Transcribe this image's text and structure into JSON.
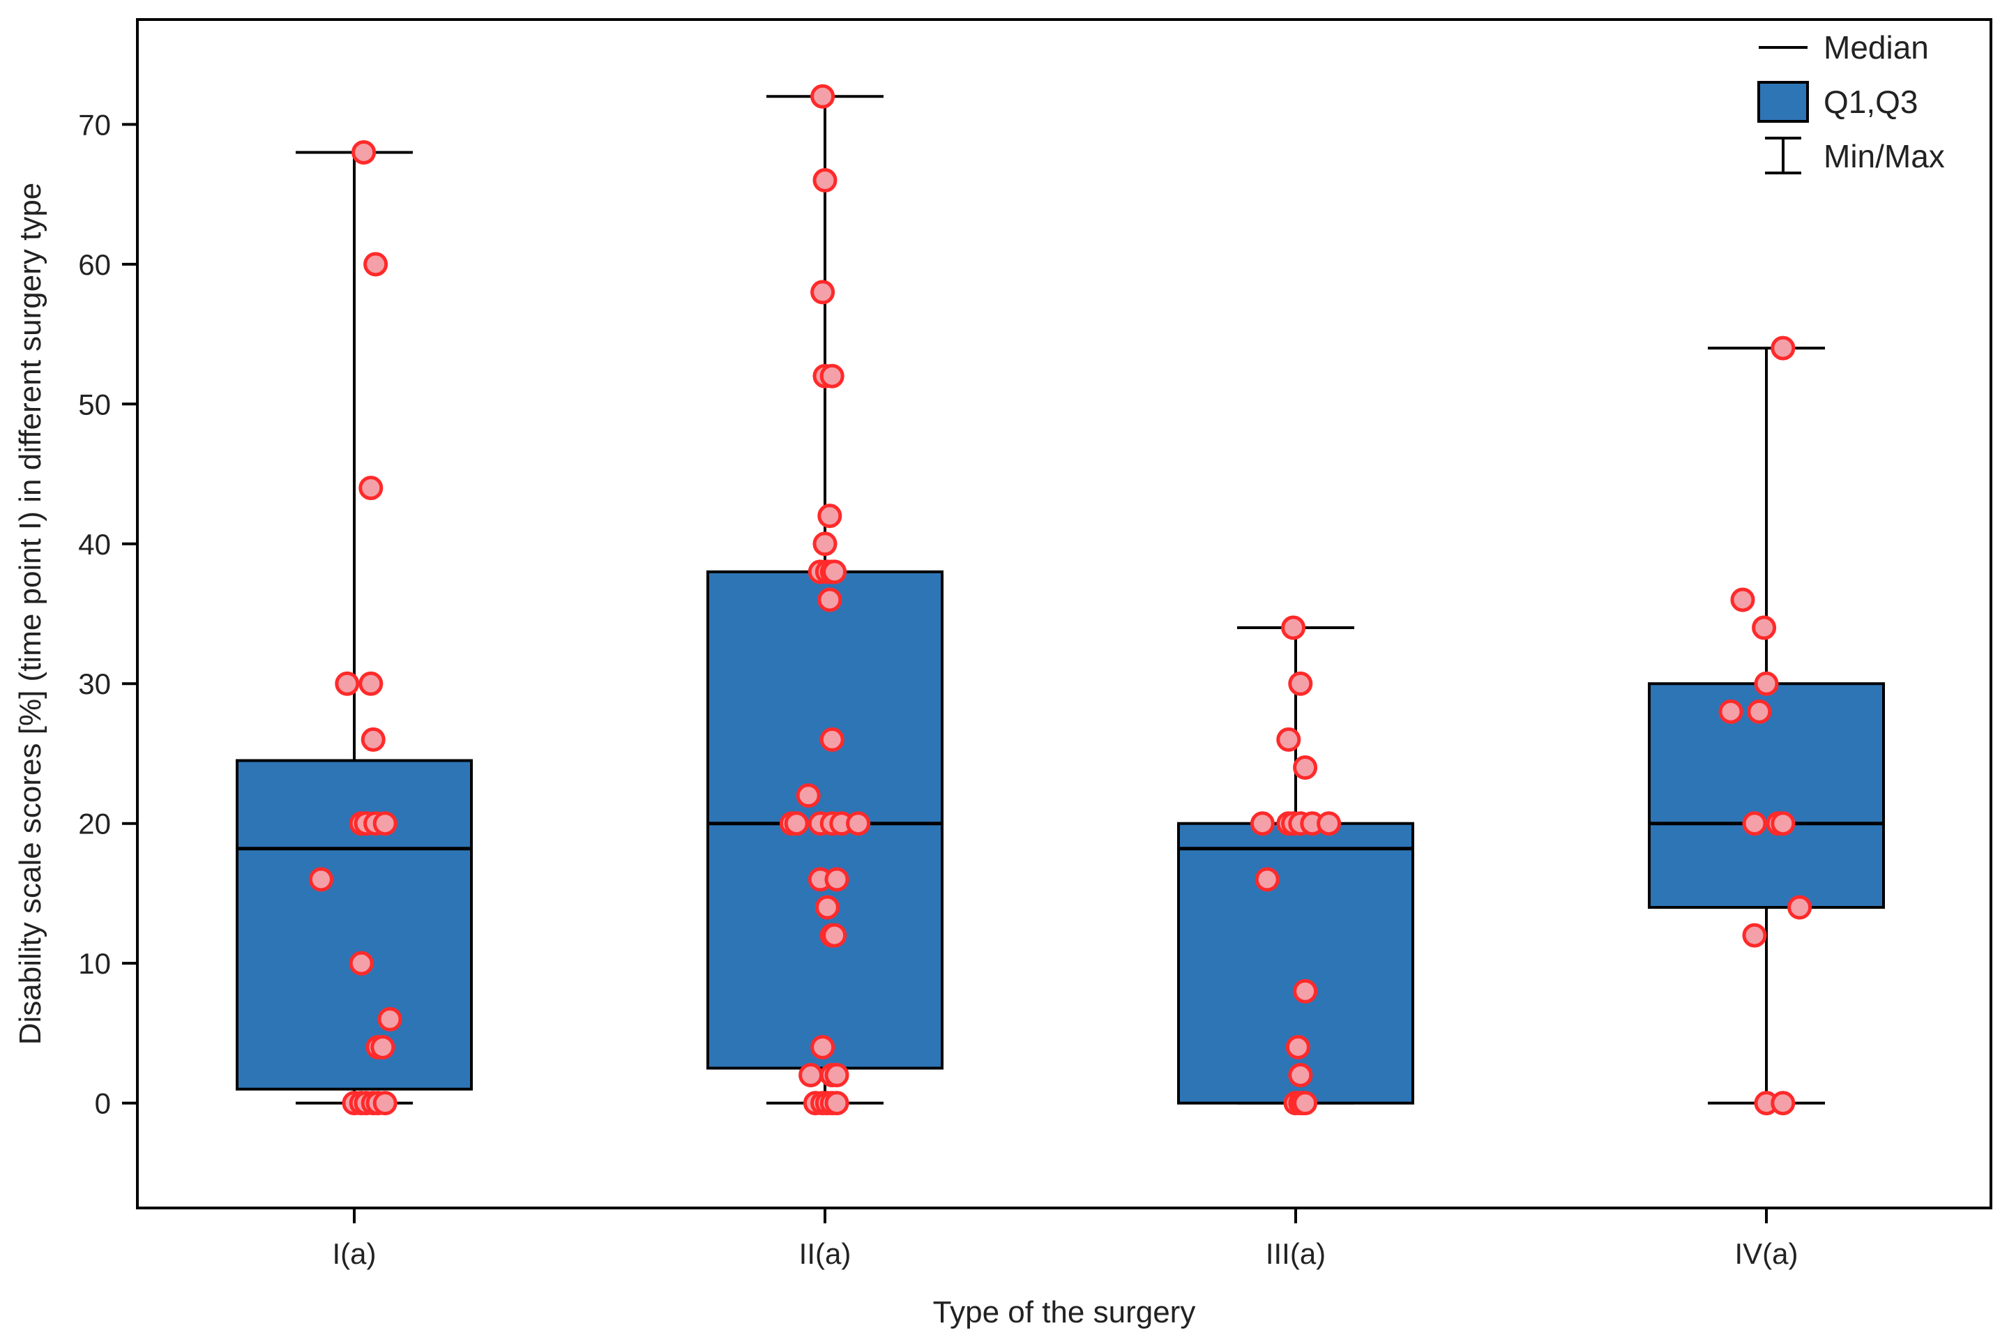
{
  "chart_data": {
    "type": "box",
    "xlabel": "Type of the surgery",
    "ylabel": "Disability scale scores [%] (time point I) in different surgery type",
    "ylim": [
      -7.5,
      77.5
    ],
    "yticks": [
      0,
      10,
      20,
      30,
      40,
      50,
      60,
      70
    ],
    "categories": [
      "I(a)",
      "II(a)",
      "III(a)",
      "IV(a)"
    ],
    "box_color": "#2e75b6",
    "point_color": "#ff2a2a",
    "point_fill": "#f4a0a8",
    "legend": {
      "position": "top-right",
      "median_label": "Median",
      "quartile_label": "Q1,Q3",
      "minmax_label": "Min/Max"
    },
    "groups": [
      {
        "name": "I(a)",
        "min": 0,
        "q1": 1,
        "median": 18.2,
        "q3": 24.5,
        "max": 68,
        "points": [
          {
            "x": -0.14,
            "y": 16
          },
          {
            "x": -0.03,
            "y": 30
          },
          {
            "x": 0.04,
            "y": 68
          },
          {
            "x": 0.09,
            "y": 60
          },
          {
            "x": 0.07,
            "y": 44
          },
          {
            "x": 0.07,
            "y": 30
          },
          {
            "x": 0.08,
            "y": 26
          },
          {
            "x": 0.03,
            "y": 20
          },
          {
            "x": 0.05,
            "y": 20
          },
          {
            "x": 0.09,
            "y": 20
          },
          {
            "x": 0.13,
            "y": 20
          },
          {
            "x": 0.03,
            "y": 10
          },
          {
            "x": 0.15,
            "y": 6
          },
          {
            "x": 0.1,
            "y": 4
          },
          {
            "x": 0.12,
            "y": 4
          },
          {
            "x": 0.0,
            "y": 0
          },
          {
            "x": 0.03,
            "y": 0
          },
          {
            "x": 0.05,
            "y": 0
          },
          {
            "x": 0.08,
            "y": 0
          },
          {
            "x": 0.1,
            "y": 0
          },
          {
            "x": 0.13,
            "y": 0
          }
        ]
      },
      {
        "name": "II(a)",
        "min": 0,
        "q1": 2.5,
        "median": 20,
        "q3": 38,
        "max": 72,
        "points": [
          {
            "x": -0.01,
            "y": 72
          },
          {
            "x": 0.0,
            "y": 66
          },
          {
            "x": -0.01,
            "y": 58
          },
          {
            "x": 0.0,
            "y": 52
          },
          {
            "x": 0.03,
            "y": 52
          },
          {
            "x": 0.02,
            "y": 42
          },
          {
            "x": 0.0,
            "y": 40
          },
          {
            "x": -0.02,
            "y": 38
          },
          {
            "x": 0.01,
            "y": 38
          },
          {
            "x": 0.03,
            "y": 38
          },
          {
            "x": 0.04,
            "y": 38
          },
          {
            "x": 0.02,
            "y": 36
          },
          {
            "x": 0.03,
            "y": 26
          },
          {
            "x": -0.07,
            "y": 22
          },
          {
            "x": -0.14,
            "y": 20
          },
          {
            "x": -0.12,
            "y": 20
          },
          {
            "x": -0.02,
            "y": 20
          },
          {
            "x": 0.03,
            "y": 20
          },
          {
            "x": 0.07,
            "y": 20
          },
          {
            "x": 0.14,
            "y": 20
          },
          {
            "x": -0.02,
            "y": 16
          },
          {
            "x": 0.05,
            "y": 16
          },
          {
            "x": 0.01,
            "y": 14
          },
          {
            "x": 0.03,
            "y": 12
          },
          {
            "x": 0.04,
            "y": 12
          },
          {
            "x": -0.06,
            "y": 2
          },
          {
            "x": 0.03,
            "y": 2
          },
          {
            "x": 0.05,
            "y": 2
          },
          {
            "x": -0.01,
            "y": 4
          },
          {
            "x": -0.04,
            "y": 0
          },
          {
            "x": -0.01,
            "y": 0
          },
          {
            "x": 0.01,
            "y": 0
          },
          {
            "x": 0.03,
            "y": 0
          },
          {
            "x": 0.05,
            "y": 0
          }
        ]
      },
      {
        "name": "III(a)",
        "min": 0,
        "q1": 0,
        "median": 18.2,
        "q3": 20,
        "max": 34,
        "points": [
          {
            "x": -0.01,
            "y": 34
          },
          {
            "x": 0.02,
            "y": 30
          },
          {
            "x": -0.03,
            "y": 26
          },
          {
            "x": 0.04,
            "y": 24
          },
          {
            "x": -0.14,
            "y": 20
          },
          {
            "x": -0.03,
            "y": 20
          },
          {
            "x": -0.01,
            "y": 20
          },
          {
            "x": 0.02,
            "y": 20
          },
          {
            "x": 0.07,
            "y": 20
          },
          {
            "x": 0.14,
            "y": 20
          },
          {
            "x": -0.12,
            "y": 16
          },
          {
            "x": 0.04,
            "y": 8
          },
          {
            "x": 0.01,
            "y": 4
          },
          {
            "x": 0.02,
            "y": 2
          },
          {
            "x": 0.0,
            "y": 0
          },
          {
            "x": 0.02,
            "y": 0
          },
          {
            "x": 0.03,
            "y": 0
          },
          {
            "x": 0.04,
            "y": 0
          }
        ]
      },
      {
        "name": "IV(a)",
        "min": 0,
        "q1": 14,
        "median": 20,
        "q3": 30,
        "max": 54,
        "points": [
          {
            "x": 0.07,
            "y": 54
          },
          {
            "x": -0.1,
            "y": 36
          },
          {
            "x": -0.01,
            "y": 34
          },
          {
            "x": 0.0,
            "y": 30
          },
          {
            "x": -0.15,
            "y": 28
          },
          {
            "x": -0.03,
            "y": 28
          },
          {
            "x": -0.05,
            "y": 20
          },
          {
            "x": 0.05,
            "y": 20
          },
          {
            "x": 0.07,
            "y": 20
          },
          {
            "x": 0.14,
            "y": 14
          },
          {
            "x": -0.05,
            "y": 12
          },
          {
            "x": 0.0,
            "y": 0
          },
          {
            "x": 0.07,
            "y": 0
          }
        ]
      }
    ]
  }
}
